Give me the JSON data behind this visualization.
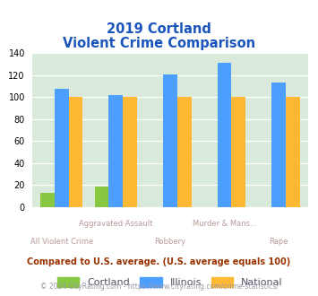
{
  "title_line1": "2019 Cortland",
  "title_line2": "Violent Crime Comparison",
  "categories": [
    "All Violent Crime",
    "Aggravated Assault",
    "Robbery",
    "Murder & Mans...",
    "Rape"
  ],
  "cortland": [
    13,
    19,
    0,
    0,
    0
  ],
  "illinois": [
    108,
    102,
    121,
    131,
    113
  ],
  "national": [
    100,
    100,
    100,
    100,
    100
  ],
  "cortland_color": "#88c740",
  "illinois_color": "#4d9fff",
  "national_color": "#ffb833",
  "bg_color": "#daeada",
  "ylim": [
    0,
    140
  ],
  "yticks": [
    0,
    20,
    40,
    60,
    80,
    100,
    120,
    140
  ],
  "footer_text": "Compared to U.S. average. (U.S. average equals 100)",
  "copyright_text": "© 2024 CityRating.com - https://www.cityrating.com/crime-statistics/",
  "title_color": "#1a55bb",
  "footer_color": "#993300",
  "copyright_color": "#9999aa",
  "label_color": "#bb9999",
  "top_labels": {
    "1": "Aggravated Assault",
    "3": "Murder & Mans..."
  },
  "bottom_labels": {
    "0": "All Violent Crime",
    "2": "Robbery",
    "4": "Rape"
  }
}
